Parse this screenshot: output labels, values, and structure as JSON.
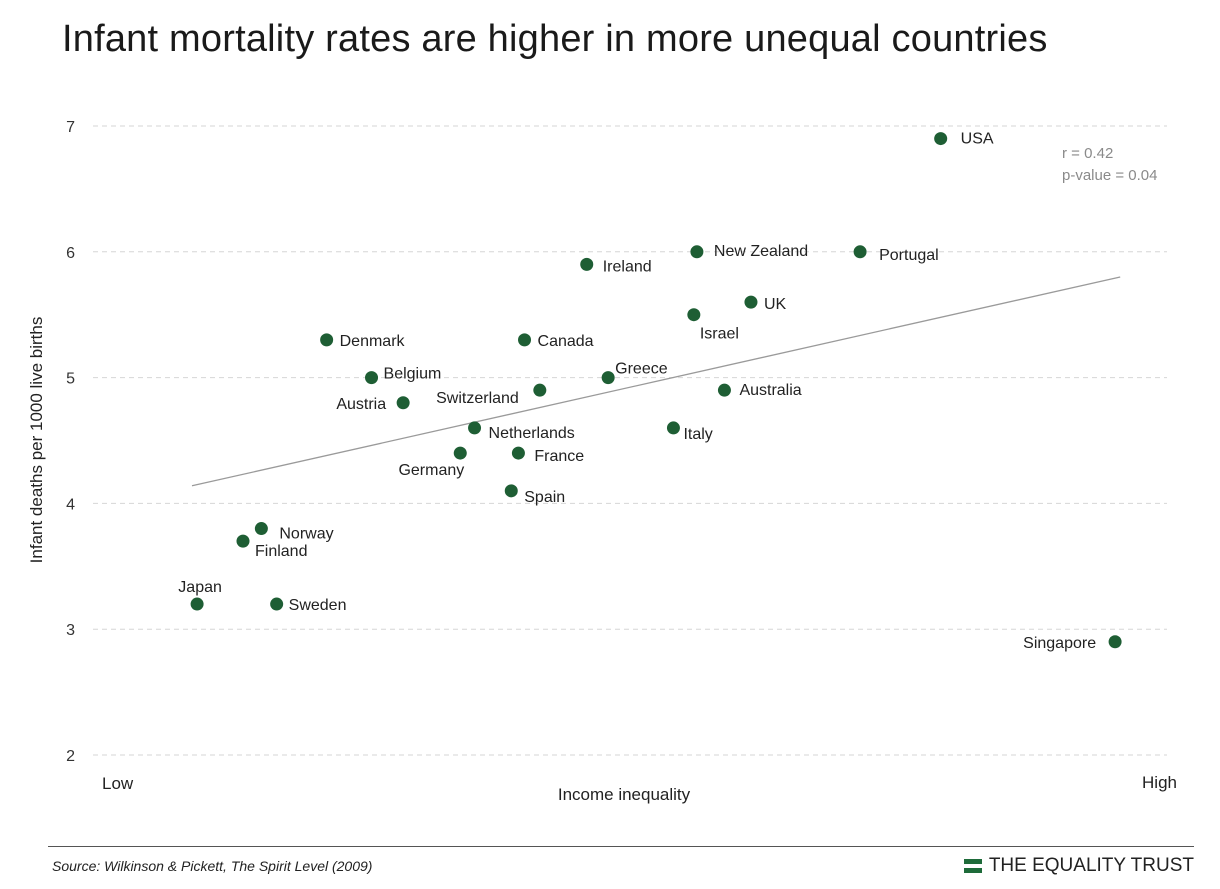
{
  "title": "Infant mortality rates are higher in more unequal countries",
  "footer": {
    "source": "Source: Wilkinson & Pickett, The Spirit Level (2009)",
    "brand": "THE EQUALITY TRUST"
  },
  "chart_data": {
    "type": "scatter",
    "title": "Infant mortality rates are higher in more unequal countries",
    "xlabel": "Income inequality",
    "ylabel": "Infant deaths per 1000 live births",
    "x_end_labels": [
      "Low",
      "High"
    ],
    "xlim": [
      0,
      100
    ],
    "ylim": [
      2,
      7
    ],
    "y_ticks": [
      2,
      3,
      4,
      5,
      6,
      7
    ],
    "grid": "horizontal-dashed",
    "point_color": "#1e5e34",
    "annotation": {
      "r": "r = 0.42",
      "p": "p-value = 0.04"
    },
    "trendline": {
      "x": [
        5,
        96
      ],
      "y": [
        4.14,
        5.8
      ]
    },
    "points": [
      {
        "label": "USA",
        "x": 78.4,
        "y": 6.9
      },
      {
        "label": "Portugal",
        "x": 70.5,
        "y": 6.0
      },
      {
        "label": "New Zealand",
        "x": 54.5,
        "y": 6.0
      },
      {
        "label": "Ireland",
        "x": 43.7,
        "y": 5.9
      },
      {
        "label": "UK",
        "x": 59.8,
        "y": 5.6
      },
      {
        "label": "Israel",
        "x": 54.2,
        "y": 5.5
      },
      {
        "label": "Denmark",
        "x": 18.2,
        "y": 5.3
      },
      {
        "label": "Canada",
        "x": 37.6,
        "y": 5.3
      },
      {
        "label": "Belgium",
        "x": 22.6,
        "y": 5.0
      },
      {
        "label": "Greece",
        "x": 45.8,
        "y": 5.0
      },
      {
        "label": "Austria",
        "x": 25.7,
        "y": 4.8
      },
      {
        "label": "Switzerland",
        "x": 39.1,
        "y": 4.9
      },
      {
        "label": "Australia",
        "x": 57.2,
        "y": 4.9
      },
      {
        "label": "Netherlands",
        "x": 32.7,
        "y": 4.6
      },
      {
        "label": "Italy",
        "x": 52.2,
        "y": 4.6
      },
      {
        "label": "Germany",
        "x": 31.3,
        "y": 4.4
      },
      {
        "label": "France",
        "x": 37.0,
        "y": 4.4
      },
      {
        "label": "Spain",
        "x": 36.3,
        "y": 4.1
      },
      {
        "label": "Norway",
        "x": 11.8,
        "y": 3.8
      },
      {
        "label": "Finland",
        "x": 10.0,
        "y": 3.7
      },
      {
        "label": "Japan",
        "x": 5.5,
        "y": 3.2
      },
      {
        "label": "Sweden",
        "x": 13.3,
        "y": 3.2
      },
      {
        "label": "Singapore",
        "x": 95.5,
        "y": 2.9
      }
    ]
  }
}
